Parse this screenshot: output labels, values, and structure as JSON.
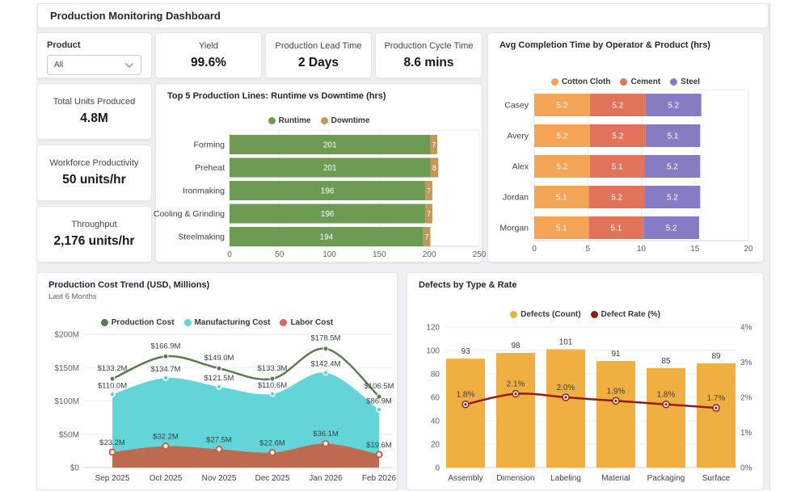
{
  "app": {
    "title": "Production Monitoring Dashboard"
  },
  "filters": {
    "product_label": "Product",
    "product_value": "All"
  },
  "kpis": [
    {
      "label": "Yield",
      "value": "99.6%"
    },
    {
      "label": "Production Lead Time",
      "value": "2 Days"
    },
    {
      "label": "Production Cycle Time",
      "value": "8.6 mins"
    },
    {
      "label": "Total Units Produced",
      "value": "4.8M"
    },
    {
      "label": "Workforce Productivity",
      "value": "50 units/hr"
    },
    {
      "label": "Throughput",
      "value": "2,176 units/hr"
    }
  ],
  "chart_data": [
    {
      "id": "runtime_downtime",
      "type": "bar",
      "orientation": "horizontal",
      "stacked": true,
      "title": "Top 5 Production Lines: Runtime vs Downtime (hrs)",
      "categories": [
        "Forming",
        "Preheat",
        "Ironmaking",
        "Cooling & Grinding",
        "Steelmaking"
      ],
      "series": [
        {
          "name": "Runtime",
          "color": "#6e9b54",
          "values": [
            201,
            201,
            196,
            196,
            194
          ]
        },
        {
          "name": "Downtime",
          "color": "#c2985a",
          "values": [
            7,
            8,
            7,
            7,
            7
          ]
        }
      ],
      "xlim": [
        0,
        250
      ],
      "xticks": [
        0,
        50,
        100,
        150,
        200,
        250
      ],
      "grid": "vertical",
      "legend_position": "top"
    },
    {
      "id": "avg_completion",
      "type": "bar",
      "orientation": "horizontal",
      "stacked": true,
      "title": "Avg Completion Time by Operator & Product (hrs)",
      "categories": [
        "Casey",
        "Avery",
        "Alex",
        "Jordan",
        "Morgan"
      ],
      "series": [
        {
          "name": "Cotton Cloth",
          "color": "#f4a455",
          "values": [
            5.2,
            5.2,
            5.2,
            5.1,
            5.1
          ]
        },
        {
          "name": "Cement",
          "color": "#e0735a",
          "values": [
            5.2,
            5.2,
            5.1,
            5.2,
            5.1
          ]
        },
        {
          "name": "Steel",
          "color": "#877cc4",
          "values": [
            5.2,
            5.1,
            5.2,
            5.2,
            5.2
          ]
        }
      ],
      "xlim": [
        0,
        20
      ],
      "xticks": [
        0,
        5,
        10,
        15,
        20
      ],
      "grid": "vertical",
      "legend_position": "top"
    },
    {
      "id": "cost_trend",
      "type": "area",
      "title": "Production Cost Trend (USD, Millions)",
      "subtitle": "Last 6 Months",
      "x": [
        "Sep 2025",
        "Oct 2025",
        "Nov 2025",
        "Dec 2025",
        "Jan 2026",
        "Feb 2026"
      ],
      "series": [
        {
          "name": "Production Cost",
          "style": "line",
          "color": "#5d7b52",
          "values": [
            133.2,
            166.9,
            149.0,
            133.3,
            178.5,
            106.5
          ],
          "labels": [
            "$133.2M",
            "$166.9M",
            "$149.0M",
            "$133.3M",
            "$178.5M",
            "$106.5M"
          ]
        },
        {
          "name": "Manufacturing Cost",
          "style": "area",
          "color": "#63d5d8",
          "area_color": "#63d5d8",
          "values": [
            110.0,
            134.7,
            121.5,
            110.6,
            142.4,
            86.9
          ],
          "labels": [
            "$110.0M",
            "$134.7M",
            "$121.5M",
            "$110.6M",
            "$142.4M",
            "$86.9M"
          ]
        },
        {
          "name": "Labor Cost",
          "style": "area",
          "color": "#d1705a",
          "area_color": "#bd6a50",
          "values": [
            23.2,
            32.2,
            27.5,
            22.6,
            36.1,
            19.6
          ],
          "labels": [
            "$23.2M",
            "$32.2M",
            "$27.5M",
            "$22.6M",
            "$36.1M",
            "$19.6M"
          ]
        }
      ],
      "ylim": [
        0,
        200
      ],
      "yticks": [
        0,
        50,
        100,
        150,
        200
      ],
      "ytick_labels": [
        "$0",
        "$50M",
        "$100M",
        "$150M",
        "$200M"
      ],
      "grid": "horizontal",
      "legend_position": "top"
    },
    {
      "id": "defects",
      "type": "bar",
      "title": "Defects by Type & Rate",
      "categories": [
        "Assembly",
        "Dimension",
        "Labeling",
        "Material",
        "Packaging",
        "Surface"
      ],
      "bar": {
        "name": "Defects (Count)",
        "color": "#f0b041",
        "values": [
          93,
          98,
          101,
          91,
          85,
          89
        ]
      },
      "line": {
        "name": "Defect Rate (%)",
        "color": "#8e1e0e",
        "values": [
          1.8,
          2.1,
          2.0,
          1.9,
          1.8,
          1.7
        ],
        "labels": [
          "1.8%",
          "2.1%",
          "2.0%",
          "1.9%",
          "1.8%",
          "1.7%"
        ]
      },
      "ylim_left": [
        0,
        120
      ],
      "yticks_left": [
        0,
        20,
        40,
        60,
        80,
        100,
        120
      ],
      "ylim_right": [
        0,
        4
      ],
      "ytick_labels_right": [
        "0%",
        "1%",
        "2%",
        "3%",
        "4%"
      ],
      "grid": "horizontal",
      "legend_position": "top"
    }
  ]
}
